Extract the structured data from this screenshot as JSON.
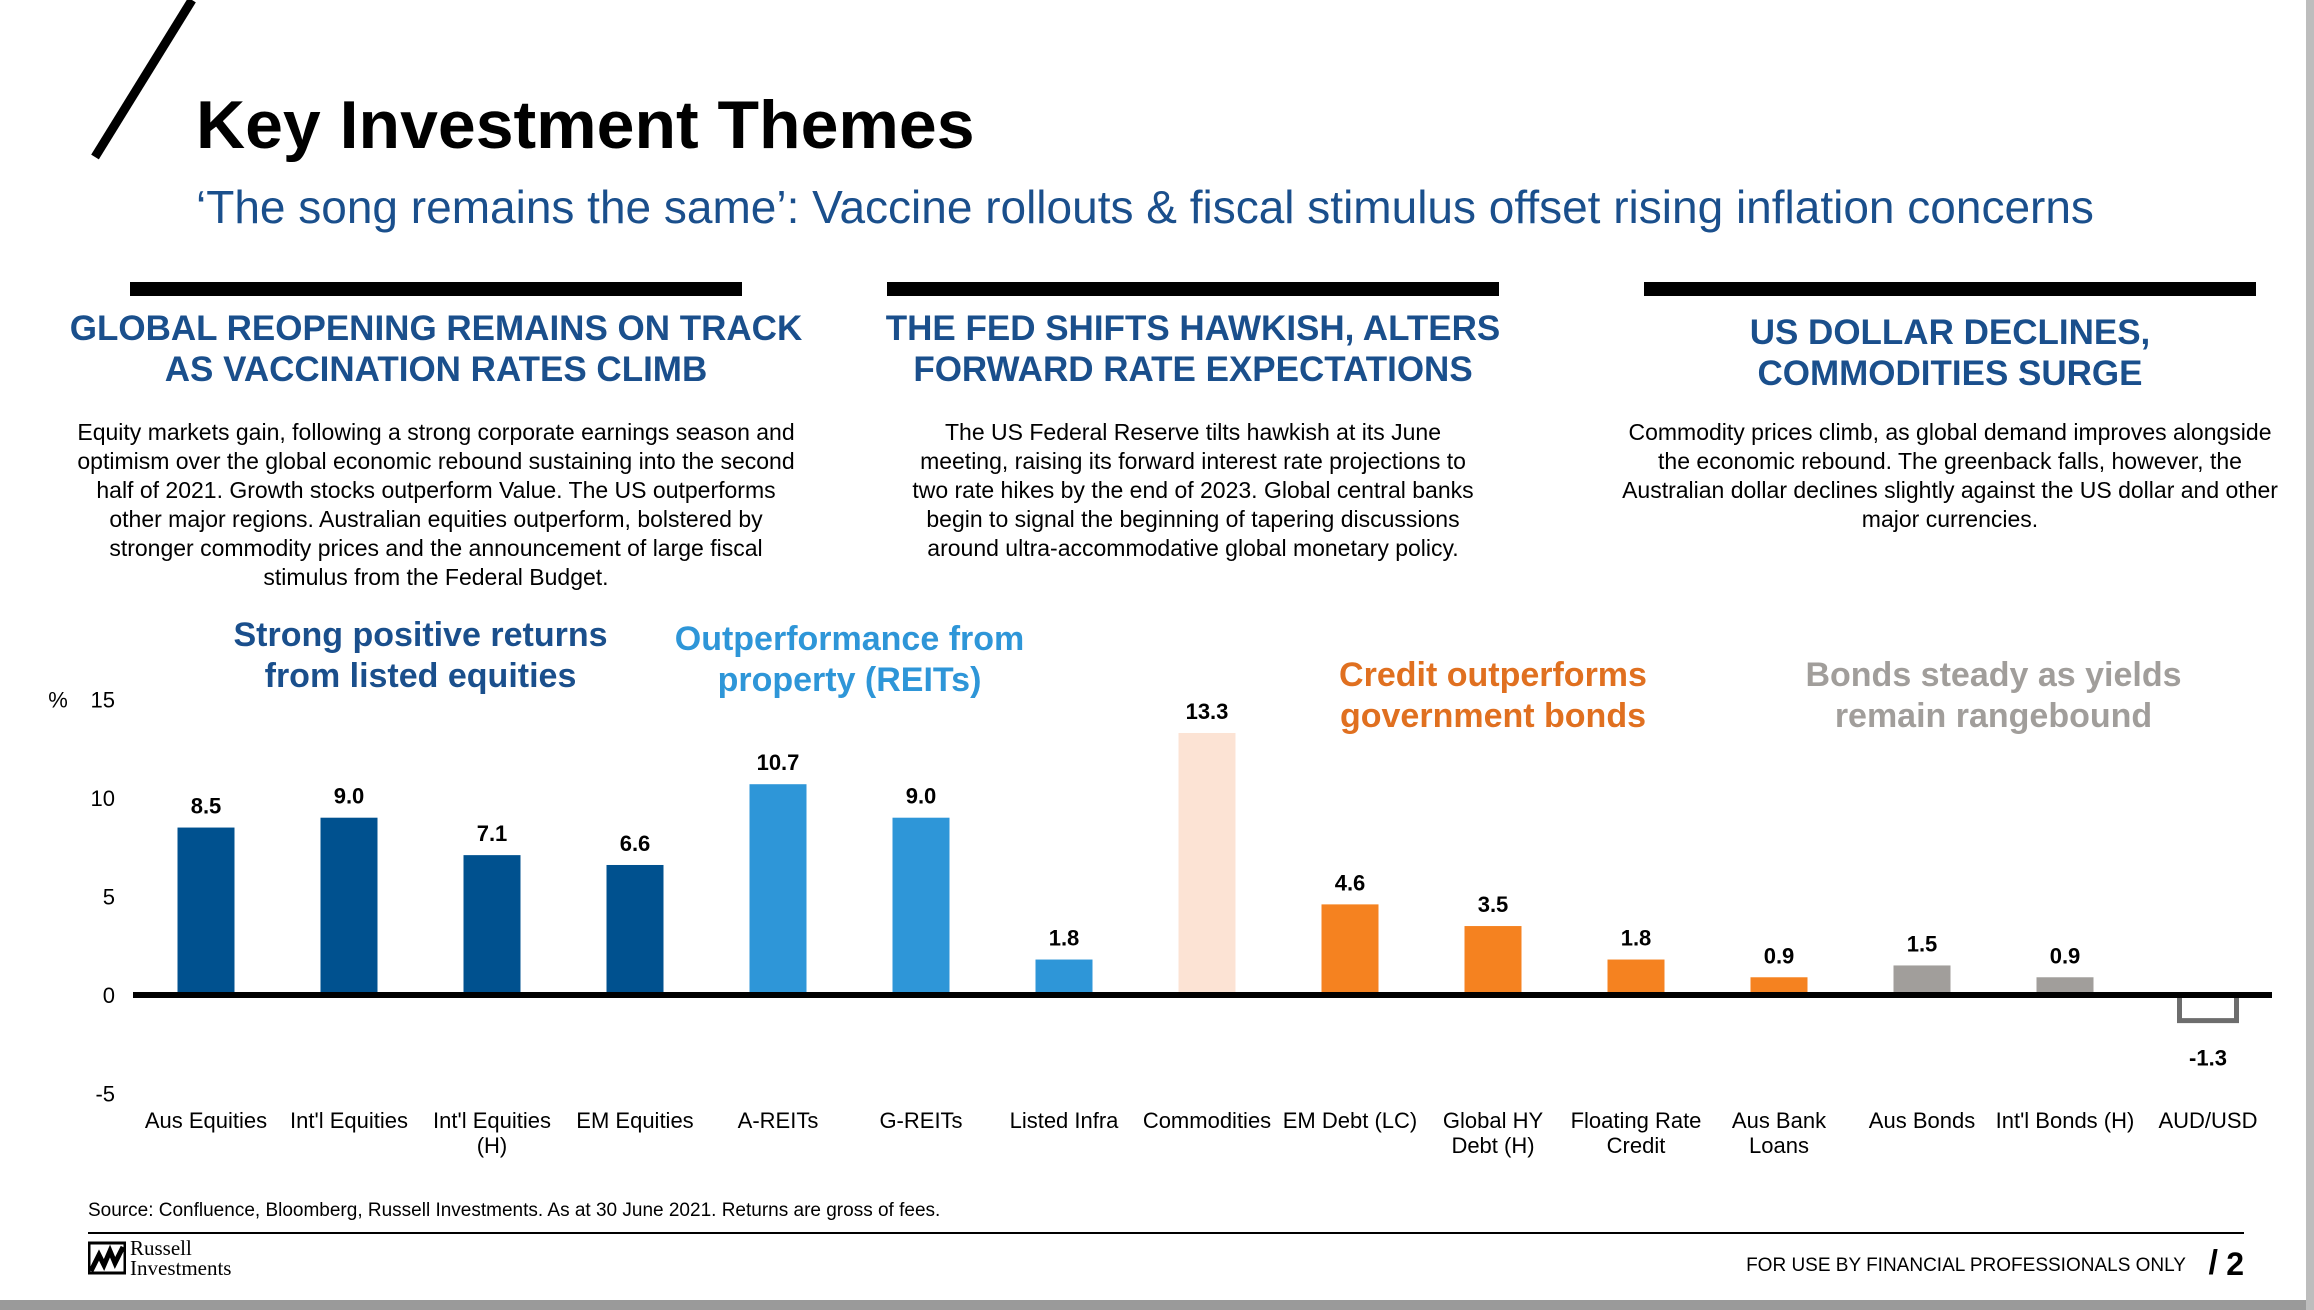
{
  "header": {
    "title": "Key Investment Themes",
    "subtitle": "‘The song remains the same’: Vaccine rollouts & fiscal stimulus offset rising inflation concerns"
  },
  "themes": [
    {
      "heading_line1": "GLOBAL REOPENING REMAINS ON TRACK",
      "heading_line2": "AS VACCINATION RATES CLIMB",
      "lines": [
        "Equity markets gain, following a strong corporate earnings season and",
        "optimism over the global economic rebound sustaining into the second",
        "half of 2021. Growth stocks outperform Value. The US outperforms",
        "other major regions. Australian equities outperform, bolstered by",
        "stronger commodity prices and the announcement of large fiscal",
        "stimulus from the Federal Budget."
      ]
    },
    {
      "heading_line1": "THE FED SHIFTS HAWKISH, ALTERS",
      "heading_line2": "FORWARD RATE EXPECTATIONS",
      "lines": [
        "The US Federal Reserve tilts hawkish at its June",
        "meeting, raising its forward interest rate projections to",
        "two rate hikes by the end of 2023. Global central banks",
        "begin to signal the beginning of tapering discussions",
        "around ultra-accommodative global monetary policy."
      ]
    },
    {
      "heading_line1": "US DOLLAR DECLINES,",
      "heading_line2": "COMMODITIES SURGE",
      "lines": [
        "Commodity prices climb, as global demand improves alongside",
        "the economic rebound. The greenback falls, however, the",
        "Australian dollar declines slightly against the US dollar and other",
        "major currencies."
      ]
    }
  ],
  "chart_data": {
    "type": "bar",
    "ylabel": "%",
    "ylim": [
      -5,
      15
    ],
    "yticks": [
      15,
      10,
      5,
      0,
      -5
    ],
    "grid": false,
    "categories": [
      [
        "Aus Equities"
      ],
      [
        "Int'l Equities"
      ],
      [
        "Int'l Equities",
        "(H)"
      ],
      [
        "EM Equities"
      ],
      [
        "A-REITs"
      ],
      [
        "G-REITs"
      ],
      [
        "Listed Infra"
      ],
      [
        "Commodities"
      ],
      [
        "EM Debt (LC)"
      ],
      [
        "Global HY",
        "Debt (H)"
      ],
      [
        "Floating Rate",
        "Credit"
      ],
      [
        "Aus Bank",
        "Loans"
      ],
      [
        "Aus Bonds"
      ],
      [
        "Int'l Bonds (H)"
      ],
      [
        "AUD/USD"
      ]
    ],
    "values": [
      8.5,
      9.0,
      7.1,
      6.6,
      10.7,
      9.0,
      1.8,
      13.3,
      4.6,
      3.5,
      1.8,
      0.9,
      1.5,
      0.9,
      -1.3
    ],
    "value_labels": [
      "8.5",
      "9.0",
      "7.1",
      "6.6",
      "10.7",
      "9.0",
      "1.8",
      "13.3",
      "4.6",
      "3.5",
      "1.8",
      "0.9",
      "1.5",
      "0.9",
      "-1.3"
    ],
    "bar_colors": [
      "#00518f",
      "#00518f",
      "#00518f",
      "#00518f",
      "#2e96d8",
      "#2e96d8",
      "#2e96d8",
      "#fce3d4",
      "#f58220",
      "#f58220",
      "#f58220",
      "#f58220",
      "#a19e9b",
      "#a19e9b",
      "#ffffff"
    ],
    "bar_outline": [
      "",
      "",
      "",
      "",
      "",
      "",
      "",
      "",
      "",
      "",
      "",
      "",
      "",
      "",
      "#6d6d6d"
    ],
    "annotations": [
      {
        "lines": [
          "Strong positive returns",
          "from listed equities"
        ],
        "color": "#1a4f8c",
        "group": [
          0,
          3
        ]
      },
      {
        "lines": [
          "Outperformance from",
          "property (REITs)"
        ],
        "color": "#2e96d8",
        "group": [
          4,
          5
        ]
      },
      {
        "lines": [
          "Credit outperforms",
          "government bonds"
        ],
        "color": "#e07020",
        "group": [
          8,
          10
        ]
      },
      {
        "lines": [
          "Bonds steady as yields",
          "remain rangebound"
        ],
        "color": "#a19e9b",
        "group": [
          12,
          13
        ]
      }
    ]
  },
  "footer": {
    "source": "Source: Confluence, Bloomberg, Russell Investments. As at 30 June 2021. Returns are gross of fees.",
    "logo_line1": "Russell",
    "logo_line2": "Investments",
    "disclaimer": "FOR USE BY FINANCIAL PROFESSIONALS ONLY",
    "page_number": "2"
  }
}
